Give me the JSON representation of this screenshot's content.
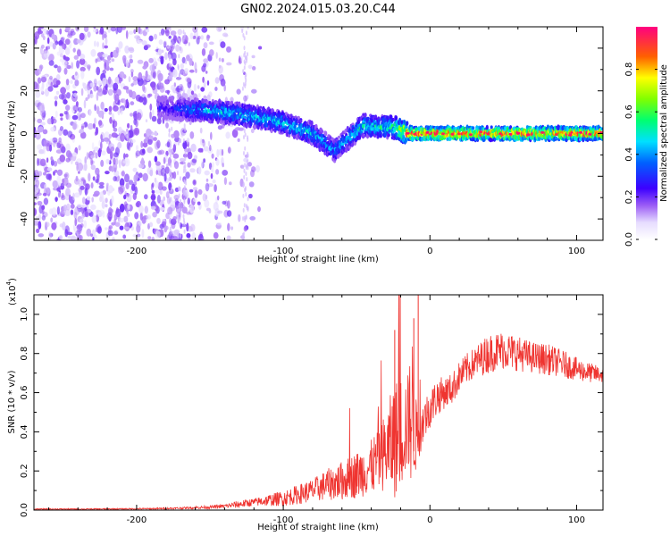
{
  "figure_title": "GN02.2024.015.03.20.C44",
  "colors": {
    "snr_line": "#ef3430",
    "colormap": [
      "#ffffff",
      "#f0e8ff",
      "#d6c0fb",
      "#b77ef5",
      "#8a3cf0",
      "#6a00f0",
      "#3c00ff",
      "#0030ff",
      "#00a0ff",
      "#00e8e8",
      "#00ff60",
      "#a0ff00",
      "#ffff00",
      "#ffb000",
      "#ff3000",
      "#ff007f"
    ]
  },
  "chart_data": [
    {
      "type": "heatmap",
      "title": "",
      "xlabel": "Height of straight line (km)",
      "ylabel": "Frequency (Hz)",
      "xlim": [
        -270,
        118
      ],
      "ylim": [
        -50,
        50
      ],
      "xticks": [
        -200,
        -100,
        0,
        100
      ],
      "yticks": [
        -40,
        -20,
        0,
        20,
        40
      ],
      "grid": false,
      "description_of_values": "noise-like scattered power below -140 km; coherent band drifting from about +12 Hz at -170 km to about -12 Hz at -60 km, then flat near 0 Hz from -15 km onward",
      "ridge": {
        "x": [
          -180,
          -160,
          -140,
          -120,
          -100,
          -80,
          -65,
          -55,
          -45,
          -35,
          -25,
          -15,
          0,
          20,
          40,
          60,
          80,
          100,
          118
        ],
        "frequency": [
          12,
          11,
          10,
          8,
          5,
          0,
          -8,
          -2,
          4,
          3,
          3,
          0,
          0,
          0,
          0,
          0,
          0,
          0,
          0
        ],
        "amplitude": [
          0.25,
          0.4,
          0.45,
          0.45,
          0.45,
          0.45,
          0.4,
          0.45,
          0.5,
          0.5,
          0.55,
          0.9,
          0.95,
          0.9,
          0.85,
          0.9,
          0.85,
          0.9,
          0.85
        ]
      },
      "colorbar": {
        "label": "Normalized spectral amplitude",
        "range": [
          0.0,
          1.0
        ],
        "ticks": [
          0.0,
          0.2,
          0.4,
          0.6,
          0.8
        ]
      }
    },
    {
      "type": "line",
      "title": "",
      "xlabel": "Height of straight line (km)",
      "ylabel": "SNR (10 * v/v)",
      "y_multiplier_label": "(x10",
      "y_multiplier_exponent": "4",
      "y_multiplier_close": ")",
      "xlim": [
        -270,
        118
      ],
      "ylim": [
        0,
        1.1
      ],
      "xticks": [
        -200,
        -100,
        0,
        100
      ],
      "yticks": [
        0.0,
        0.2,
        0.4,
        0.6,
        0.8,
        1.0
      ],
      "grid": false,
      "series": [
        {
          "x": [
            -270,
            -250,
            -230,
            -210,
            -190,
            -170,
            -150,
            -140,
            -130,
            -120,
            -110,
            -100,
            -90,
            -80,
            -70,
            -60,
            -50,
            -40,
            -30,
            -25,
            -20,
            -15,
            -12,
            -10,
            -8,
            -5,
            0,
            5,
            10,
            15,
            20,
            25,
            30,
            40,
            50,
            60,
            70,
            80,
            90,
            100,
            110,
            118
          ],
          "y": [
            0.005,
            0.005,
            0.005,
            0.006,
            0.007,
            0.01,
            0.015,
            0.02,
            0.03,
            0.04,
            0.05,
            0.06,
            0.08,
            0.1,
            0.13,
            0.15,
            0.18,
            0.22,
            0.3,
            0.35,
            0.4,
            0.45,
            0.5,
            0.38,
            0.4,
            0.45,
            0.52,
            0.58,
            0.6,
            0.62,
            0.68,
            0.72,
            0.75,
            0.8,
            0.82,
            0.8,
            0.78,
            0.77,
            0.75,
            0.72,
            0.7,
            0.69
          ],
          "noise_amplitude": [
            0.003,
            0.003,
            0.003,
            0.003,
            0.004,
            0.005,
            0.008,
            0.01,
            0.02,
            0.02,
            0.03,
            0.04,
            0.05,
            0.06,
            0.08,
            0.1,
            0.12,
            0.14,
            0.2,
            0.3,
            0.3,
            0.25,
            0.4,
            0.2,
            0.15,
            0.12,
            0.1,
            0.1,
            0.08,
            0.08,
            0.08,
            0.08,
            0.08,
            0.1,
            0.1,
            0.09,
            0.08,
            0.08,
            0.07,
            0.06,
            0.05,
            0.04
          ],
          "color": "#ef3430"
        }
      ]
    }
  ]
}
